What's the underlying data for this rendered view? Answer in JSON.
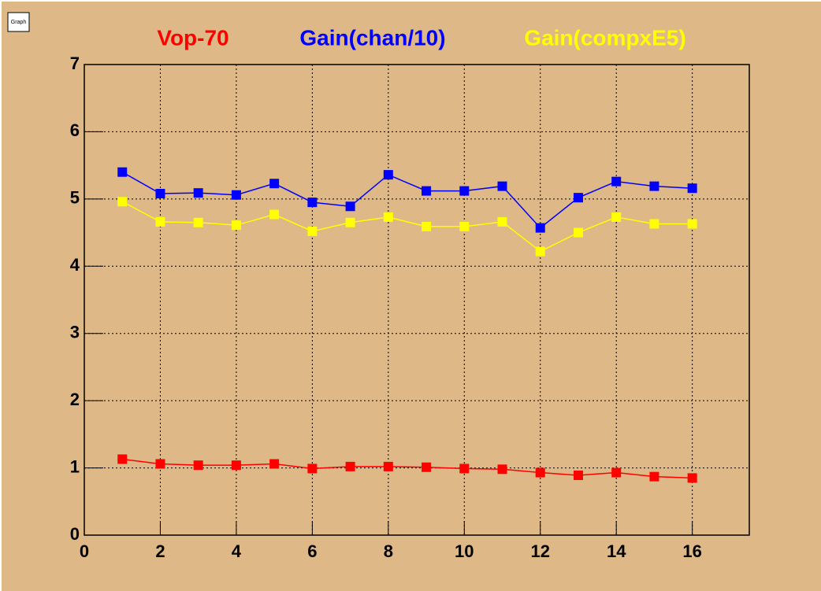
{
  "chart_data": {
    "type": "line",
    "canvas_label": "Graph",
    "x": [
      1,
      2,
      3,
      4,
      5,
      6,
      7,
      8,
      9,
      10,
      11,
      12,
      13,
      14,
      15,
      16
    ],
    "series": [
      {
        "name": "Vop-70",
        "color": "#ff0000",
        "values": [
          1.13,
          1.06,
          1.04,
          1.04,
          1.06,
          0.99,
          1.02,
          1.02,
          1.01,
          0.99,
          0.98,
          0.93,
          0.89,
          0.93,
          0.87,
          0.85
        ]
      },
      {
        "name": "Gain(chan/10)",
        "color": "#0000ff",
        "values": [
          5.4,
          5.08,
          5.09,
          5.06,
          5.23,
          4.95,
          4.89,
          5.36,
          5.12,
          5.12,
          5.19,
          4.57,
          5.02,
          5.26,
          5.19,
          5.16
        ]
      },
      {
        "name": "Gain(compxE5)",
        "color": "#ffff00",
        "values": [
          4.96,
          4.66,
          4.65,
          4.61,
          4.77,
          4.52,
          4.65,
          4.73,
          4.59,
          4.59,
          4.66,
          4.22,
          4.5,
          4.73,
          4.63,
          4.63
        ]
      }
    ],
    "xlim": [
      0,
      17.5
    ],
    "ylim": [
      0,
      7
    ],
    "xticks": [
      0,
      2,
      4,
      6,
      8,
      10,
      12,
      14,
      16
    ],
    "yticks": [
      0,
      1,
      2,
      3,
      4,
      5,
      6,
      7
    ],
    "grid": true
  }
}
